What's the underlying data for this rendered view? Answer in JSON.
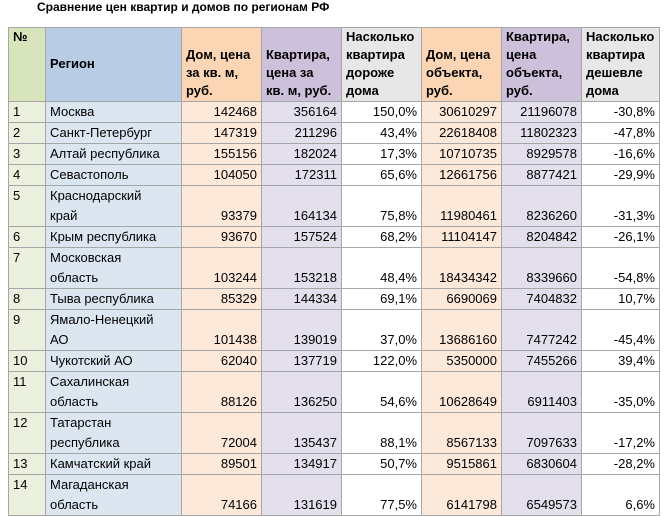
{
  "title": "Сравнение цен квартир и домов по регионам РФ",
  "table": {
    "header": [
      "№",
      "Регион",
      "Дом, цена за кв. м, руб.",
      "Квартира, цена за кв. м, руб.",
      "Насколько квартира дороже дома",
      "Дом, цена объекта, руб.",
      "Квартира, цена объекта, руб.",
      "Насколько квартира дешевле дома"
    ],
    "rows": [
      [
        "1",
        "Москва",
        "142468",
        "356164",
        "150,0%",
        "30610297",
        "21196078",
        "-30,8%"
      ],
      [
        "2",
        "Санкт-Петербург",
        "147319",
        "211296",
        "43,4%",
        "22618408",
        "11802323",
        "-47,8%"
      ],
      [
        "3",
        "Алтай республика",
        "155156",
        "182024",
        "17,3%",
        "10710735",
        "8929578",
        "-16,6%"
      ],
      [
        "4",
        "Севастополь",
        "104050",
        "172311",
        "65,6%",
        "12661756",
        "8877421",
        "-29,9%"
      ],
      [
        "5",
        "Краснодарский край",
        "93379",
        "164134",
        "75,8%",
        "11980461",
        "8236260",
        "-31,3%"
      ],
      [
        "6",
        "Крым республика",
        "93670",
        "157524",
        "68,2%",
        "11104147",
        "8204842",
        "-26,1%"
      ],
      [
        "7",
        "Московская область",
        "103244",
        "153218",
        "48,4%",
        "18434342",
        "8339660",
        "-54,8%"
      ],
      [
        "8",
        "Тыва республика",
        "85329",
        "144334",
        "69,1%",
        "6690069",
        "7404832",
        "10,7%"
      ],
      [
        "9",
        "Ямало-Ненецкий АО",
        "101438",
        "139019",
        "37,0%",
        "13686160",
        "7477242",
        "-45,4%"
      ],
      [
        "10",
        "Чукотский АО",
        "62040",
        "137719",
        "122,0%",
        "5350000",
        "7455266",
        "39,4%"
      ],
      [
        "11",
        "Сахалинская область",
        "88126",
        "136250",
        "54,6%",
        "10628649",
        "6911403",
        "-35,0%"
      ],
      [
        "12",
        "Татарстан республика",
        "72004",
        "135437",
        "88,1%",
        "8567133",
        "7097633",
        "-17,2%"
      ],
      [
        "13",
        "Камчатский край",
        "89501",
        "134917",
        "50,7%",
        "9515861",
        "6830604",
        "-28,2%"
      ],
      [
        "14",
        "Магаданская область",
        "74166",
        "131619",
        "77,5%",
        "6141798",
        "6549573",
        "6,6%"
      ]
    ]
  }
}
